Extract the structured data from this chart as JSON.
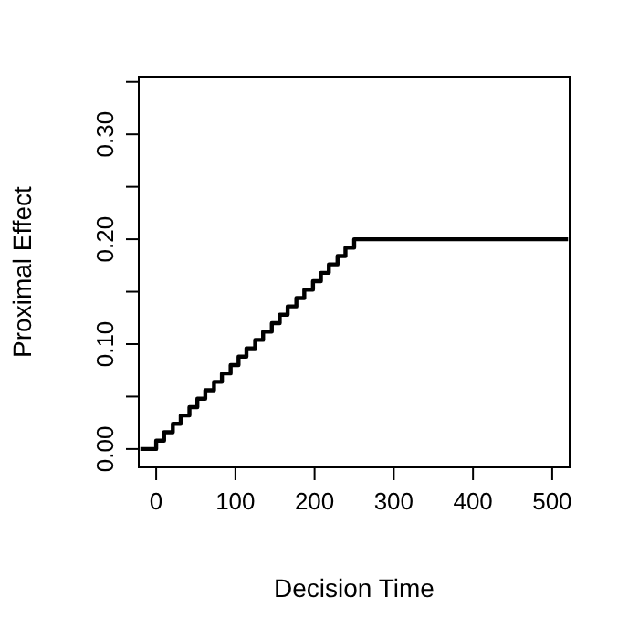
{
  "chart_data": {
    "type": "step",
    "xlabel": "Decision Time",
    "ylabel": "Proximal Effect",
    "x": [
      -20,
      0,
      10,
      21,
      31,
      42,
      52,
      62,
      73,
      83,
      94,
      104,
      114,
      125,
      135,
      146,
      156,
      166,
      177,
      187,
      198,
      208,
      218,
      229,
      239,
      250,
      520
    ],
    "values": [
      0,
      0.008,
      0.016,
      0.024,
      0.032,
      0.04,
      0.048,
      0.056,
      0.064,
      0.072,
      0.08,
      0.088,
      0.096,
      0.104,
      0.112,
      0.12,
      0.128,
      0.136,
      0.144,
      0.152,
      0.16,
      0.168,
      0.176,
      0.184,
      0.192,
      0.2,
      0.2
    ],
    "color": "#000000",
    "xlim": [
      -22,
      522
    ],
    "xticks": [
      0,
      100,
      200,
      300,
      400,
      500
    ],
    "ylim": [
      -0.0175,
      0.355
    ],
    "yticks": [
      {
        "value": 0,
        "label": "0.00"
      },
      {
        "value": 0.05,
        "label": null
      },
      {
        "value": 0.1,
        "label": "0.10"
      },
      {
        "value": 0.15,
        "label": null
      },
      {
        "value": 0.2,
        "label": "0.20"
      },
      {
        "value": 0.25,
        "label": null
      },
      {
        "value": 0.3,
        "label": "0.30"
      },
      {
        "value": 0.35,
        "label": null
      }
    ]
  }
}
